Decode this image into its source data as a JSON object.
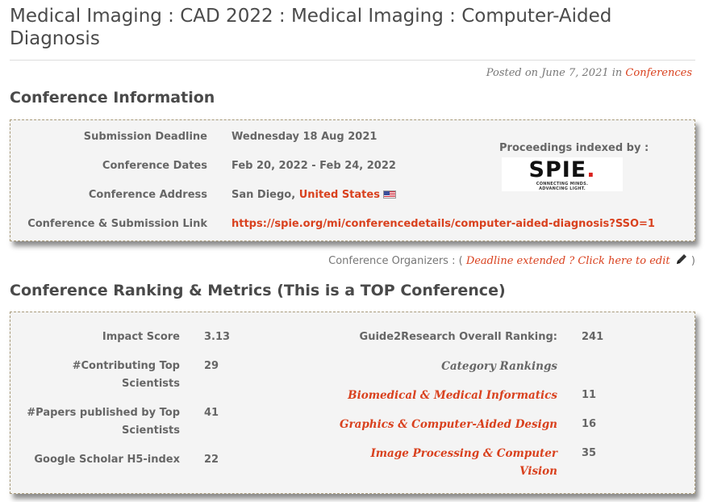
{
  "page": {
    "title": "Medical Imaging : CAD 2022 : Medical Imaging : Computer-Aided Diagnosis",
    "posted_prefix": "Posted on",
    "posted_date": "June 7, 2021",
    "posted_in": "in",
    "category": "Conferences"
  },
  "conference_info": {
    "heading": "Conference Information",
    "rows": [
      {
        "label": "Submission Deadline",
        "value": "Wednesday 18 Aug 2021"
      },
      {
        "label": "Conference Dates",
        "value": "Feb 20, 2022 - Feb 24, 2022"
      },
      {
        "label": "Conference Address",
        "value_city": "San Diego,",
        "value_country": "United States",
        "flag_icon": "us-flag-icon"
      },
      {
        "label": "Conference & Submission Link",
        "value": "https://spie.org/mi/conferencedetails/computer-aided-diagnosis?SSO=1"
      }
    ],
    "proceedings_label": "Proceedings indexed by :",
    "proceedings_logo": {
      "word": "SPIE",
      "dot": ".",
      "tagline_1": "CONNECTING MINDS.",
      "tagline_2": "ADVANCING LIGHT."
    }
  },
  "organizers": {
    "label": "Conference Organizers :",
    "open_paren": "(",
    "link": "Deadline extended ? Click here to edit",
    "close_paren": ")",
    "icon": "pencil-icon"
  },
  "ranking": {
    "heading": "Conference Ranking & Metrics (This is a TOP Conference)",
    "metrics": [
      {
        "label_1": "Impact Score",
        "label_2": "",
        "value": "3.13"
      },
      {
        "label_1": "#Contributing Top",
        "label_2": "Scientists",
        "value": "29"
      },
      {
        "label_1": "#Papers published by Top",
        "label_2": "Scientists",
        "value": "41"
      },
      {
        "label_1": "Google Scholar H5-index",
        "label_2": "",
        "value": "22"
      }
    ],
    "overall_label": "Guide2Research Overall Ranking:",
    "overall_value": "241",
    "category_heading": "Category Rankings",
    "categories": [
      {
        "label_1": "Biomedical & Medical Informatics",
        "label_2": "",
        "value": "11"
      },
      {
        "label_1": "Graphics & Computer-Aided Design",
        "label_2": "",
        "value": "16"
      },
      {
        "label_1": "Image Processing & Computer",
        "label_2": "Vision",
        "value": "35"
      }
    ]
  },
  "colors": {
    "accent": "#d9411e",
    "box_bg": "#f4f4f4",
    "text": "#666666"
  }
}
